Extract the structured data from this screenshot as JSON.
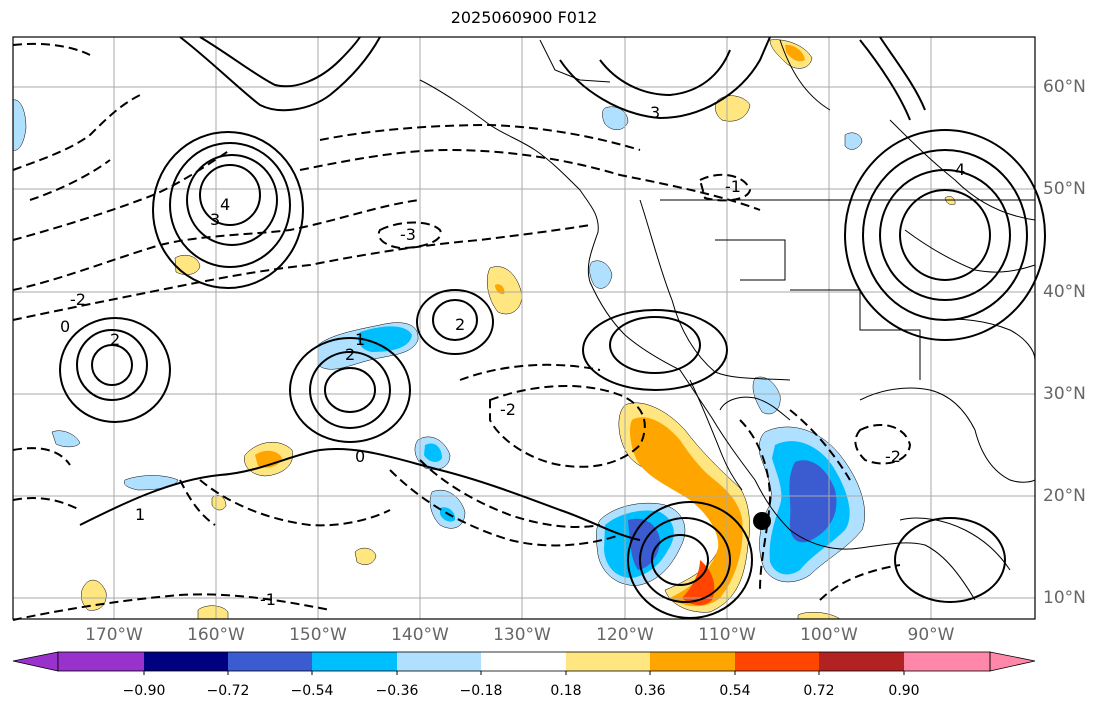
{
  "title": "2025060900 F012",
  "lat_labels": [
    "60°N",
    "50°N",
    "40°N",
    "30°N",
    "20°N",
    "10°N"
  ],
  "lon_labels": [
    "170°W",
    "160°W",
    "150°W",
    "140°W",
    "130°W",
    "120°W",
    "110°W",
    "100°W",
    "90°W"
  ],
  "colorbar": {
    "ticks": [
      "−0.90",
      "−0.72",
      "−0.54",
      "−0.36",
      "−0.18",
      "0.18",
      "0.36",
      "0.54",
      "0.72",
      "0.90"
    ],
    "colors": [
      "#9932cc",
      "#000080",
      "#3b5bd1",
      "#00bfff",
      "#b0e0ff",
      "#ffffff",
      "#ffe680",
      "#ffa500",
      "#ff4500",
      "#b22222",
      "#ff88aa"
    ]
  },
  "contour_labels": {
    "l1": "2",
    "l2": "3",
    "l3": "4",
    "l4": "0",
    "l5": "-2",
    "l6": "-3",
    "l7": "1",
    "l8": "-1",
    "l9": "2",
    "l10": "-2",
    "l11": "4",
    "l12": "3",
    "l13": "0",
    "l14": "-1",
    "l15": "1",
    "l16": "-2",
    "l17": "2"
  },
  "marker": "storm-position-dot"
}
